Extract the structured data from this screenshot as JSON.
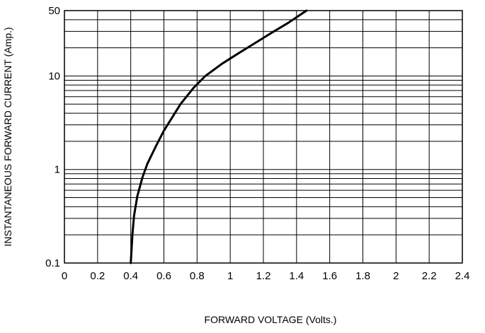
{
  "chart_data": {
    "type": "line",
    "title": "",
    "xlabel": "FORWARD VOLTAGE (Volts.)",
    "ylabel": "INSTANTANEOUS FORWARD CURRENT (Amp.)",
    "xlim": [
      0,
      2.4
    ],
    "ylim": [
      0.1,
      50
    ],
    "yscale": "log",
    "grid": true,
    "x_ticks": [
      0,
      0.2,
      0.4,
      0.6,
      0.8,
      1,
      1.2,
      1.4,
      1.6,
      1.8,
      2,
      2.2,
      2.4
    ],
    "x_tick_labels": [
      "0",
      "0.2",
      "0.4",
      "0.6",
      "0.8",
      "1",
      "1.2",
      "1.4",
      "1.6",
      "1.8",
      "2",
      "2.2",
      "2.4"
    ],
    "y_ticks": [
      0.1,
      1,
      10,
      50
    ],
    "y_tick_labels": [
      "0.1",
      "1",
      "10",
      "50"
    ],
    "y_minor_grid": [
      0.2,
      0.3,
      0.4,
      0.5,
      0.6,
      0.7,
      0.8,
      0.9,
      2,
      3,
      4,
      5,
      6,
      7,
      8,
      9,
      20,
      30,
      40
    ],
    "series": [
      {
        "x": [
          0.4,
          0.41,
          0.42,
          0.44,
          0.47,
          0.5,
          0.55,
          0.6,
          0.65,
          0.7,
          0.78,
          0.85,
          0.95,
          1.05,
          1.15,
          1.25,
          1.35,
          1.46
        ],
        "y": [
          0.1,
          0.2,
          0.32,
          0.52,
          0.82,
          1.15,
          1.75,
          2.6,
          3.6,
          5,
          7.5,
          10,
          13.5,
          17.5,
          22.5,
          29,
          37,
          50
        ],
        "color": "#000000"
      }
    ]
  }
}
